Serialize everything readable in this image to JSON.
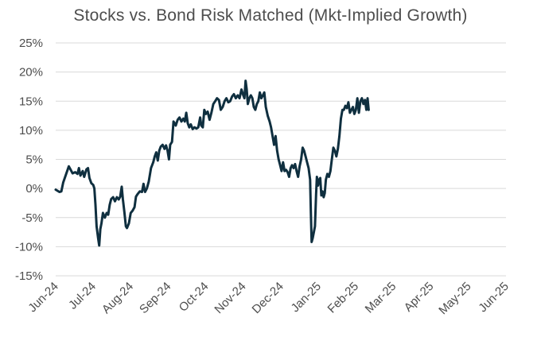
{
  "chart_data": {
    "type": "line",
    "title": "Stocks vs. Bond Risk Matched (Mkt-Implied Growth)",
    "xlabel": "",
    "ylabel": "",
    "ylim": [
      -15,
      25
    ],
    "y_ticks": [
      {
        "value": 25,
        "label": "25%"
      },
      {
        "value": 20,
        "label": "20%"
      },
      {
        "value": 15,
        "label": "15%"
      },
      {
        "value": 10,
        "label": "10%"
      },
      {
        "value": 5,
        "label": "5%"
      },
      {
        "value": 0,
        "label": "0%"
      },
      {
        "value": -5,
        "label": "-5%"
      },
      {
        "value": -10,
        "label": "-10%"
      },
      {
        "value": -15,
        "label": "-15%"
      }
    ],
    "x_ticks": [
      "Jun-24",
      "Jul-24",
      "Aug-24",
      "Sep-24",
      "Oct-24",
      "Nov-24",
      "Dec-24",
      "Jan-25",
      "Feb-25",
      "Mar-25",
      "Apr-25",
      "May-25",
      "Jun-25"
    ],
    "grid": true,
    "line_color": "#0f2f3f",
    "series": [
      {
        "name": "Mkt-Implied Growth",
        "points": [
          [
            0.0,
            -0.2
          ],
          [
            0.1,
            -0.6
          ],
          [
            0.15,
            -0.5
          ],
          [
            0.2,
            1.0
          ],
          [
            0.28,
            2.5
          ],
          [
            0.35,
            3.8
          ],
          [
            0.4,
            3.2
          ],
          [
            0.45,
            2.6
          ],
          [
            0.52,
            2.8
          ],
          [
            0.58,
            2.5
          ],
          [
            0.62,
            3.5
          ],
          [
            0.66,
            2.2
          ],
          [
            0.72,
            3.0
          ],
          [
            0.76,
            2.0
          ],
          [
            0.82,
            3.3
          ],
          [
            0.86,
            3.5
          ],
          [
            0.9,
            1.8
          ],
          [
            0.95,
            0.9
          ],
          [
            1.0,
            0.6
          ],
          [
            1.03,
            0.0
          ],
          [
            1.06,
            -2.8
          ],
          [
            1.09,
            -6.5
          ],
          [
            1.13,
            -8.5
          ],
          [
            1.16,
            -9.8
          ],
          [
            1.19,
            -7.0
          ],
          [
            1.22,
            -6.0
          ],
          [
            1.26,
            -4.2
          ],
          [
            1.31,
            -5.0
          ],
          [
            1.36,
            -4.2
          ],
          [
            1.4,
            -4.5
          ],
          [
            1.44,
            -2.8
          ],
          [
            1.48,
            -1.8
          ],
          [
            1.53,
            -1.5
          ],
          [
            1.58,
            -2.2
          ],
          [
            1.63,
            -1.5
          ],
          [
            1.68,
            -1.9
          ],
          [
            1.72,
            -1.4
          ],
          [
            1.76,
            0.3
          ],
          [
            1.79,
            -1.8
          ],
          [
            1.83,
            -4.0
          ],
          [
            1.87,
            -6.5
          ],
          [
            1.9,
            -6.8
          ],
          [
            1.95,
            -6.0
          ],
          [
            2.0,
            -4.2
          ],
          [
            2.05,
            -3.8
          ],
          [
            2.1,
            -3.2
          ],
          [
            2.14,
            -1.4
          ],
          [
            2.18,
            -1.0
          ],
          [
            2.24,
            -0.5
          ],
          [
            2.3,
            -0.6
          ],
          [
            2.34,
            0.8
          ],
          [
            2.38,
            -0.6
          ],
          [
            2.43,
            0.0
          ],
          [
            2.48,
            1.2
          ],
          [
            2.54,
            3.5
          ],
          [
            2.6,
            4.5
          ],
          [
            2.64,
            5.5
          ],
          [
            2.68,
            6.2
          ],
          [
            2.72,
            4.8
          ],
          [
            2.76,
            6.5
          ],
          [
            2.8,
            7.2
          ],
          [
            2.85,
            7.5
          ],
          [
            2.9,
            6.8
          ],
          [
            2.94,
            7.4
          ],
          [
            2.98,
            6.5
          ],
          [
            3.02,
            5.0
          ],
          [
            3.05,
            7.5
          ],
          [
            3.1,
            8.0
          ],
          [
            3.14,
            11.5
          ],
          [
            3.17,
            11.2
          ],
          [
            3.2,
            10.8
          ],
          [
            3.25,
            11.8
          ],
          [
            3.3,
            12.2
          ],
          [
            3.35,
            11.5
          ],
          [
            3.4,
            12.0
          ],
          [
            3.44,
            11.5
          ],
          [
            3.48,
            13.0
          ],
          [
            3.52,
            11.2
          ],
          [
            3.56,
            10.5
          ],
          [
            3.6,
            11.0
          ],
          [
            3.65,
            10.2
          ],
          [
            3.7,
            10.5
          ],
          [
            3.75,
            10.3
          ],
          [
            3.8,
            10.5
          ],
          [
            3.85,
            12.2
          ],
          [
            3.88,
            10.8
          ],
          [
            3.92,
            10.5
          ],
          [
            3.96,
            13.5
          ],
          [
            4.0,
            12.8
          ],
          [
            4.05,
            13.2
          ],
          [
            4.1,
            11.8
          ],
          [
            4.15,
            13.0
          ],
          [
            4.2,
            14.5
          ],
          [
            4.25,
            15.0
          ],
          [
            4.3,
            15.5
          ],
          [
            4.35,
            15.2
          ],
          [
            4.4,
            13.5
          ],
          [
            4.45,
            14.0
          ],
          [
            4.5,
            15.0
          ],
          [
            4.55,
            15.5
          ],
          [
            4.6,
            14.8
          ],
          [
            4.65,
            15.0
          ],
          [
            4.7,
            15.8
          ],
          [
            4.75,
            16.2
          ],
          [
            4.8,
            15.5
          ],
          [
            4.85,
            16.0
          ],
          [
            4.9,
            15.5
          ],
          [
            4.95,
            17.0
          ],
          [
            5.0,
            16.0
          ],
          [
            5.03,
            15.5
          ],
          [
            5.06,
            18.5
          ],
          [
            5.09,
            17.0
          ],
          [
            5.12,
            14.5
          ],
          [
            5.16,
            15.5
          ],
          [
            5.2,
            16.0
          ],
          [
            5.24,
            15.5
          ],
          [
            5.28,
            14.0
          ],
          [
            5.32,
            13.5
          ],
          [
            5.36,
            14.5
          ],
          [
            5.4,
            15.0
          ],
          [
            5.44,
            16.5
          ],
          [
            5.48,
            15.5
          ],
          [
            5.52,
            16.0
          ],
          [
            5.56,
            16.5
          ],
          [
            5.6,
            14.0
          ],
          [
            5.65,
            12.5
          ],
          [
            5.7,
            11.5
          ],
          [
            5.74,
            10.5
          ],
          [
            5.78,
            9.0
          ],
          [
            5.82,
            7.5
          ],
          [
            5.86,
            9.0
          ],
          [
            5.9,
            6.5
          ],
          [
            5.94,
            5.0
          ],
          [
            5.98,
            4.0
          ],
          [
            6.02,
            3.0
          ],
          [
            6.06,
            4.5
          ],
          [
            6.1,
            3.0
          ],
          [
            6.14,
            3.2
          ],
          [
            6.18,
            2.8
          ],
          [
            6.22,
            2.0
          ],
          [
            6.26,
            3.5
          ],
          [
            6.3,
            4.0
          ],
          [
            6.34,
            3.5
          ],
          [
            6.38,
            4.2
          ],
          [
            6.42,
            3.0
          ],
          [
            6.46,
            2.0
          ],
          [
            6.5,
            3.8
          ],
          [
            6.54,
            5.0
          ],
          [
            6.58,
            7.0
          ],
          [
            6.62,
            6.5
          ],
          [
            6.66,
            5.5
          ],
          [
            6.7,
            4.5
          ],
          [
            6.74,
            3.5
          ],
          [
            6.78,
            1.5
          ],
          [
            6.8,
            -4.0
          ],
          [
            6.82,
            -9.2
          ],
          [
            6.85,
            -8.5
          ],
          [
            6.88,
            -7.5
          ],
          [
            6.91,
            -6.5
          ],
          [
            6.94,
            -1.0
          ],
          [
            6.96,
            2.0
          ],
          [
            6.99,
            0.5
          ],
          [
            7.02,
            1.5
          ],
          [
            7.05,
            1.8
          ],
          [
            7.08,
            -1.2
          ],
          [
            7.11,
            -0.5
          ],
          [
            7.14,
            -1.5
          ],
          [
            7.17,
            -0.8
          ],
          [
            7.2,
            1.5
          ],
          [
            7.24,
            2.5
          ],
          [
            7.28,
            2.0
          ],
          [
            7.32,
            3.0
          ],
          [
            7.36,
            5.0
          ],
          [
            7.4,
            7.0
          ],
          [
            7.44,
            6.5
          ],
          [
            7.48,
            5.5
          ],
          [
            7.52,
            6.8
          ],
          [
            7.56,
            9.0
          ],
          [
            7.6,
            12.0
          ],
          [
            7.64,
            13.5
          ],
          [
            7.68,
            13.5
          ],
          [
            7.72,
            14.2
          ],
          [
            7.76,
            13.8
          ],
          [
            7.8,
            14.8
          ],
          [
            7.84,
            13.0
          ],
          [
            7.88,
            13.5
          ],
          [
            7.92,
            14.0
          ],
          [
            7.96,
            12.8
          ],
          [
            8.0,
            13.5
          ],
          [
            8.04,
            15.5
          ],
          [
            8.08,
            13.0
          ],
          [
            8.12,
            15.0
          ],
          [
            8.16,
            15.5
          ],
          [
            8.2,
            14.5
          ],
          [
            8.24,
            15.2
          ],
          [
            8.28,
            13.5
          ],
          [
            8.31,
            15.5
          ],
          [
            8.34,
            13.5
          ]
        ]
      }
    ]
  }
}
